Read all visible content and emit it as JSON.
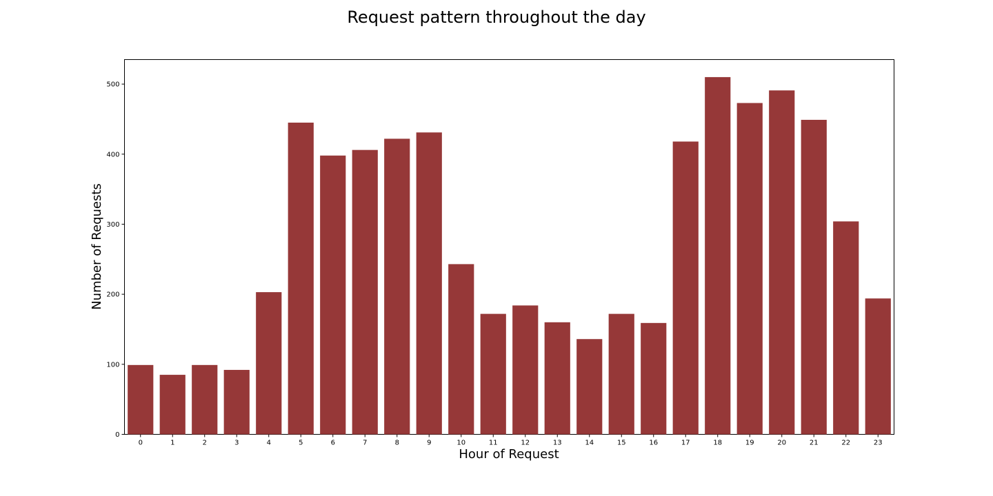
{
  "chart_data": {
    "type": "bar",
    "title": "Request pattern throughout the day",
    "xlabel": "Hour of Request",
    "ylabel": "Number of Requests",
    "categories": [
      "0",
      "1",
      "2",
      "3",
      "4",
      "5",
      "6",
      "7",
      "8",
      "9",
      "10",
      "11",
      "12",
      "13",
      "14",
      "15",
      "16",
      "17",
      "18",
      "19",
      "20",
      "21",
      "22",
      "23"
    ],
    "values": [
      99,
      85,
      99,
      92,
      203,
      445,
      398,
      406,
      422,
      431,
      243,
      172,
      184,
      160,
      136,
      172,
      159,
      418,
      510,
      473,
      491,
      449,
      304,
      194
    ],
    "ylim": [
      0,
      535
    ],
    "yticks": [
      0,
      100,
      200,
      300,
      400,
      500
    ],
    "grid": false,
    "legend": "none",
    "colors": {
      "bar": "#963838"
    }
  }
}
